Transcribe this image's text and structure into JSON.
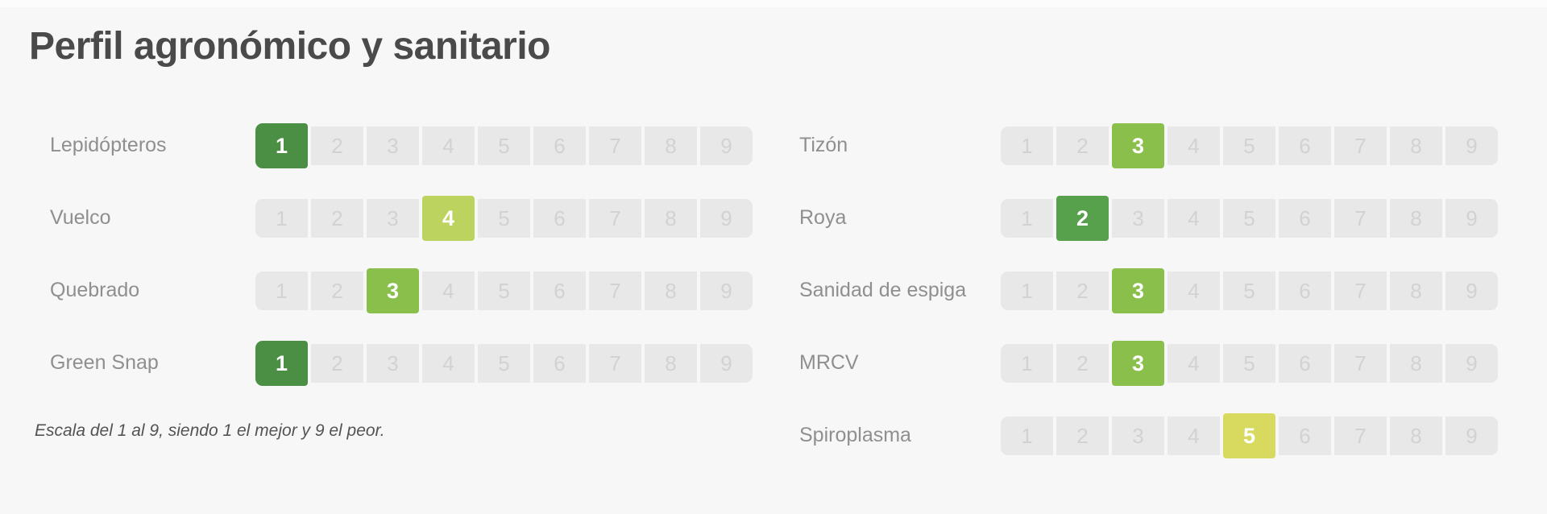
{
  "page": {
    "title": "Perfil agronómico y sanitario",
    "footnote": "Escala del 1 al 9, siendo 1 el mejor y 9 el peor."
  },
  "scale": {
    "min": 1,
    "max": 9
  },
  "colors": {
    "background": "#f7f7f7",
    "cell_bg": "#e8e8e8",
    "cell_text": "#d2d2d2",
    "label": "#8f8f8f",
    "title": "#4a4a4a",
    "footnote": "#535353",
    "selected_text": "#ffffff",
    "value_colors": {
      "1": "#4a8f43",
      "2": "#57a04c",
      "3": "#8abf4b",
      "4": "#bdd35f",
      "5": "#d7da5f"
    }
  },
  "columns": [
    {
      "rows": [
        {
          "label": "Lepidópteros",
          "value": 1
        },
        {
          "label": "Vuelco",
          "value": 4
        },
        {
          "label": "Quebrado",
          "value": 3
        },
        {
          "label": "Green Snap",
          "value": 1
        }
      ]
    },
    {
      "rows": [
        {
          "label": "Tizón",
          "value": 3
        },
        {
          "label": "Roya",
          "value": 2
        },
        {
          "label": "Sanidad de espiga",
          "value": 3
        },
        {
          "label": "MRCV",
          "value": 3
        },
        {
          "label": "Spiroplasma",
          "value": 5
        }
      ]
    }
  ],
  "chart_data": {
    "type": "table",
    "title": "Perfil agronómico y sanitario",
    "note": "Escala del 1 al 9, siendo 1 el mejor y 9 el peor.",
    "scale_min": 1,
    "scale_max": 9,
    "categories": [
      "Lepidópteros",
      "Vuelco",
      "Quebrado",
      "Green Snap",
      "Tizón",
      "Roya",
      "Sanidad de espiga",
      "MRCV",
      "Spiroplasma"
    ],
    "values": [
      1,
      4,
      3,
      1,
      3,
      2,
      3,
      3,
      5
    ],
    "legend_position": "none",
    "grid": false
  }
}
